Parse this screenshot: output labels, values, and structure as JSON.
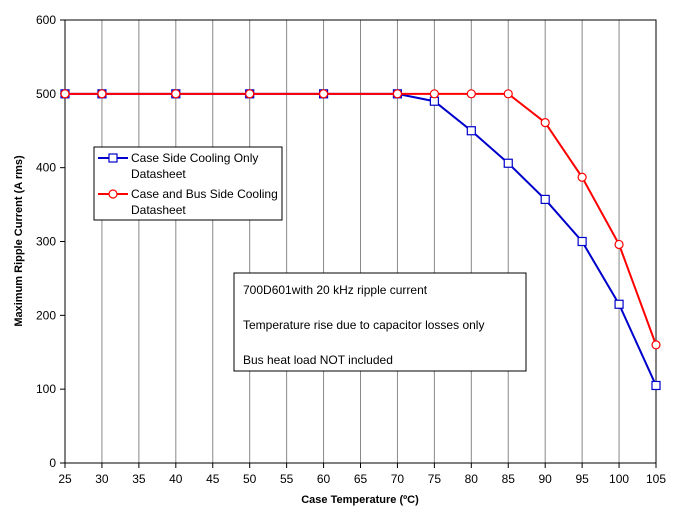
{
  "chart_data": {
    "type": "line",
    "xlabel": "Case Temperature (ºC)",
    "ylabel": "Maximum Ripple Current (A rms)",
    "xlim": [
      25,
      105
    ],
    "ylim": [
      0,
      600
    ],
    "x_ticks": [
      25,
      30,
      35,
      40,
      45,
      50,
      55,
      60,
      65,
      70,
      75,
      80,
      85,
      90,
      95,
      100,
      105
    ],
    "y_ticks": [
      0,
      100,
      200,
      300,
      400,
      500,
      600
    ],
    "grid": {
      "vertical": true,
      "horizontal": false
    },
    "legend": {
      "placement": "left"
    },
    "series": [
      {
        "name_lines": [
          "Case Side Cooling Only",
          "Datasheet"
        ],
        "color": "#0000cc",
        "marker": "square",
        "x": [
          25,
          30,
          40,
          50,
          60,
          70,
          75,
          80,
          85,
          90,
          95,
          100,
          105
        ],
        "y": [
          500,
          500,
          500,
          500,
          500,
          500,
          490,
          450,
          406,
          357,
          300,
          215,
          105
        ]
      },
      {
        "name_lines": [
          "Case and Bus Side Cooling",
          "Datasheet"
        ],
        "color": "#ff0000",
        "marker": "circle",
        "x": [
          25,
          30,
          40,
          50,
          60,
          70,
          75,
          80,
          85,
          90,
          95,
          100,
          105
        ],
        "y": [
          500,
          500,
          500,
          500,
          500,
          500,
          500,
          500,
          500,
          461,
          387,
          296,
          160
        ]
      }
    ],
    "annotation": [
      "700D601with 20 kHz ripple current",
      "Temperature rise due to capacitor losses only",
      "Bus heat load NOT included"
    ]
  }
}
